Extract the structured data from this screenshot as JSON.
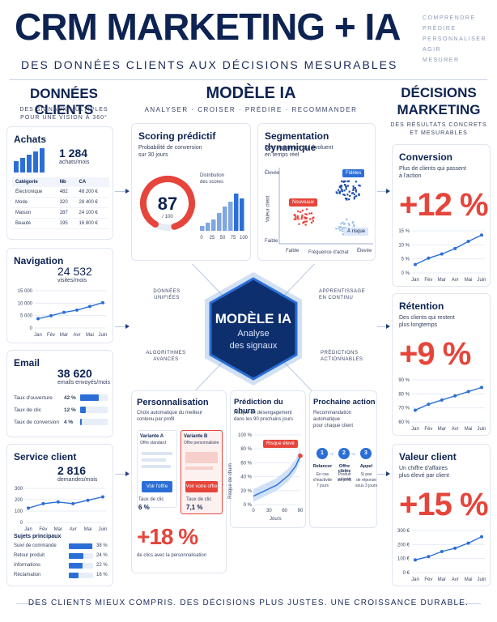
{
  "header": {
    "title": "CRM MARKETING + IA",
    "subtitle": "DES DONNÉES CLIENTS AUX DÉCISIONS MESURABLES",
    "tags": [
      "COMPRENDRE",
      "PRÉDIRE",
      "PERSONNALISER",
      "AGIR",
      "MESURER"
    ]
  },
  "left": {
    "title": "DONNÉES CLIENTS",
    "sub": [
      "DES SIGNAUX MULTIPLES",
      "POUR UNE VISION À 360°"
    ],
    "achats": {
      "title": "Achats",
      "value": "1 284",
      "unit": "achats/mois",
      "headers": [
        "Catégorie",
        "Nb",
        "CA"
      ],
      "rows": [
        [
          "Électronique",
          "482",
          "48 200 €"
        ],
        [
          "Mode",
          "320",
          "28 400 €"
        ],
        [
          "Maison",
          "287",
          "24 100 €"
        ],
        [
          "Beauté",
          "195",
          "16 800 €"
        ]
      ]
    },
    "navigation": {
      "title": "Navigation",
      "value": "24 532",
      "unit": "visites/mois",
      "yticks": [
        "15 000",
        "10 000",
        "5 000",
        "0"
      ],
      "xticks": [
        "Jan",
        "Fév",
        "Mar",
        "Avr",
        "Mai",
        "Juin"
      ]
    },
    "email": {
      "title": "Email",
      "value": "38 620",
      "unit": "emails envoyés/mois",
      "rows": [
        {
          "label": "Taux d'ouverture",
          "value": "42 %",
          "pct": 0.42
        },
        {
          "label": "Taux de clic",
          "value": "12 %",
          "pct": 0.12
        },
        {
          "label": "Taux de conversion",
          "value": "4 %",
          "pct": 0.04
        }
      ]
    },
    "service": {
      "title": "Service client",
      "value": "2 816",
      "unit": "demandes/mois",
      "yticks": [
        "300",
        "200",
        "100",
        "0"
      ],
      "xticks": [
        "Jan",
        "Fév",
        "Mar",
        "Avr",
        "Mai",
        "Juin"
      ],
      "topics_title": "Sujets principaux",
      "topics": [
        {
          "label": "Suivi de commande",
          "value": "38 %",
          "pct": 0.38
        },
        {
          "label": "Retour produit",
          "value": "24 %",
          "pct": 0.24
        },
        {
          "label": "Informations",
          "value": "22 %",
          "pct": 0.22
        },
        {
          "label": "Réclamation",
          "value": "16 %",
          "pct": 0.16
        }
      ]
    }
  },
  "center": {
    "title": "MODÈLE IA",
    "sub": "ANALYSER · CROISER · PRÉDIRE · RECOMMANDER",
    "scoring": {
      "title": "Scoring prédictif",
      "sub": [
        "Probabilité de conversion",
        "sur 30 jours"
      ],
      "score": "87",
      "of": "/ 100",
      "dist_label": [
        "Distribution",
        "des scores"
      ],
      "dist_ticks": [
        "0",
        "25",
        "50",
        "75",
        "100"
      ],
      "score_fraction": 0.87
    },
    "segmentation": {
      "title": "Segmentation dynamique",
      "sub": [
        "Des segments qui évoluent",
        "en temps réel"
      ],
      "ylabel": "Valeur client",
      "y_high": "Élevée",
      "y_low": "Faible",
      "x_low": "Faible",
      "xlabel": "Fréquence d'achat",
      "x_high": "Élevée",
      "segments": [
        "Fidèles",
        "Nouveaux",
        "À risque"
      ]
    },
    "hex": {
      "title": "MODÈLE IA",
      "line1": "Analyse",
      "line2": "des signaux"
    },
    "labels": {
      "tl": [
        "DONNÉES",
        "UNIFIÉES"
      ],
      "tr": [
        "APPRENTISSAGE",
        "EN CONTINU"
      ],
      "bl": [
        "ALGORITHMES",
        "AVANCÉS"
      ],
      "br": [
        "PRÉDICTIONS",
        "ACTIONNABLES"
      ]
    },
    "perso": {
      "title": "Personnalisation",
      "sub": [
        "Choix automatique du meilleur",
        "contenu par profil"
      ],
      "a_title": "Variante A",
      "a_sub": "Offre standard",
      "a_btn": "Voir l'offre",
      "a_rate_label": "Taux de clic",
      "a_rate": "6 %",
      "b_title": "Variante B",
      "b_sub": "Offre personnalisée",
      "b_btn": "Voir votre offre",
      "b_rate_label": "Taux de clic",
      "b_rate": "7,1 %",
      "big": "+18 %",
      "big_sub": "de clics avec la personnalisation"
    },
    "churn": {
      "title": "Prédiction du churn",
      "sub": [
        "Risque de désengagement",
        "dans les 90 prochains jours"
      ],
      "badge": "Risque élevé",
      "ylabel": "Risque de churn",
      "yticks": [
        "100 %",
        "80 %",
        "60 %",
        "40 %",
        "20 %",
        "0 %"
      ],
      "xticks": [
        "0",
        "30",
        "60",
        "90"
      ],
      "xlabel": "Jours"
    },
    "action": {
      "title": "Prochaine action",
      "sub": [
        "Recommandation automatique",
        "pour chaque client"
      ],
      "steps": [
        {
          "n": "1",
          "t": "Relancer",
          "d": [
            "En cas",
            "d'inactivité",
            "7 jours"
          ]
        },
        {
          "n": "2",
          "t": "Offre ciblée",
          "d": [
            "Produit adapté",
            "au profil"
          ]
        },
        {
          "n": "3",
          "t": "Appel",
          "d": [
            "Si pas",
            "de réponse",
            "sous 3 jours"
          ]
        }
      ]
    }
  },
  "right": {
    "title": [
      "DÉCISIONS",
      "MARKETING"
    ],
    "sub": [
      "DES RÉSULTATS CONCRETS",
      "ET MESURABLES"
    ],
    "conversion": {
      "title": "Conversion",
      "sub": [
        "Plus de clients qui passent",
        "à l'action"
      ],
      "big": "+12 %",
      "yticks": [
        "15 %",
        "10 %",
        "5 %",
        "0 %"
      ],
      "xticks": [
        "Jan",
        "Fév",
        "Mar",
        "Avr",
        "Mai",
        "Juin"
      ]
    },
    "retention": {
      "title": "Rétention",
      "sub": [
        "Des clients qui restent",
        "plus longtemps"
      ],
      "big": "+9 %",
      "yticks": [
        "90 %",
        "80 %",
        "70 %",
        "60 %"
      ],
      "xticks": [
        "Jan",
        "Fév",
        "Mar",
        "Avr",
        "Mai",
        "Juin"
      ]
    },
    "valeur": {
      "title": "Valeur client",
      "sub": [
        "Un chiffre d'affaires",
        "plus élevé par client"
      ],
      "big": "+15 %",
      "yticks": [
        "300 €",
        "200 €",
        "100 €",
        "0 €"
      ],
      "xticks": [
        "Jan",
        "Fév",
        "Mar",
        "Avr",
        "Mai",
        "Juin"
      ]
    }
  },
  "footer": "DES CLIENTS MIEUX COMPRIS. DES DÉCISIONS PLUS JUSTES. UNE CROISSANCE DURABLE.",
  "colors": {
    "navy": "#0d2352",
    "blue": "#2b6fd6",
    "red": "#e5453b"
  }
}
